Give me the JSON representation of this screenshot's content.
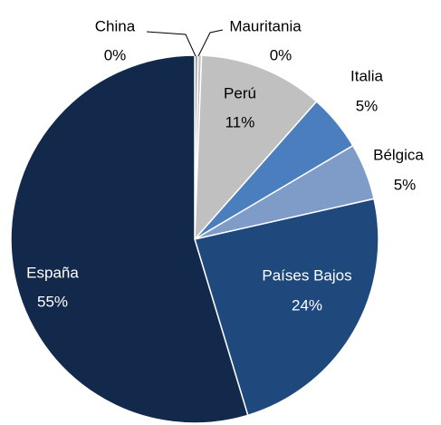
{
  "chart_data": {
    "type": "pie",
    "categories": [
      "China",
      "Mauritania",
      "Perú",
      "Italia",
      "Bélgica",
      "Países Bajos",
      "España"
    ],
    "values": [
      0.3,
      0.3,
      11,
      5,
      5,
      24,
      55
    ],
    "value_labels": [
      "0%",
      "0%",
      "11%",
      "5%",
      "5%",
      "24%",
      "55%"
    ],
    "colors": [
      "#a6a6a6",
      "#bfbfbf",
      "#c0c0c0",
      "#4a7ebf",
      "#7f9cc9",
      "#1f497d",
      "#13294b"
    ]
  }
}
